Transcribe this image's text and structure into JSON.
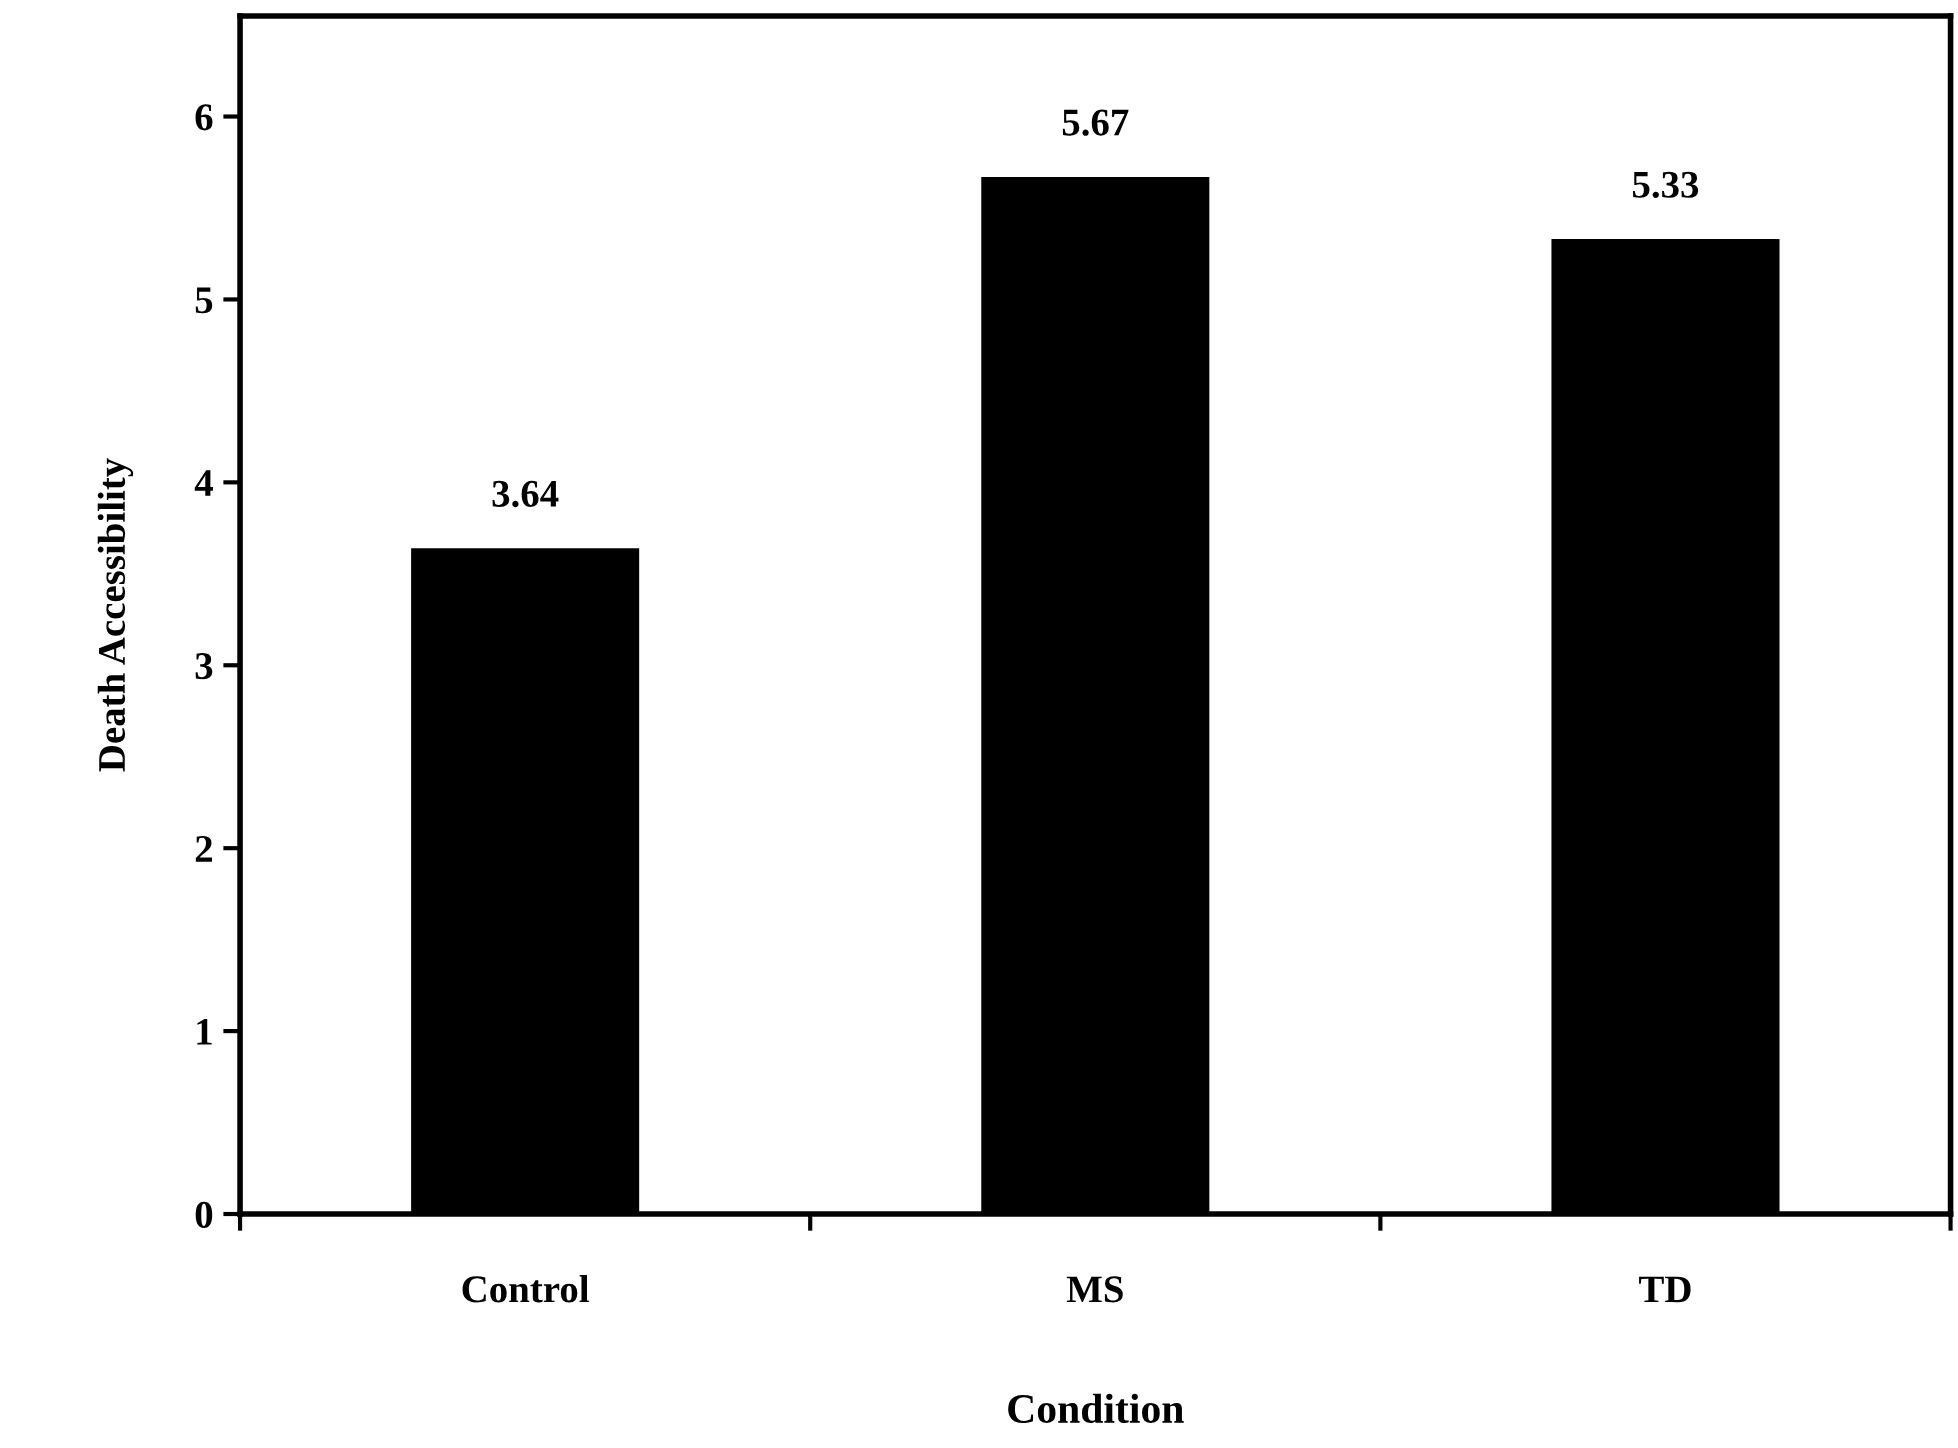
{
  "chart_data": {
    "type": "bar",
    "xlabel": "Condition",
    "ylabel": "Death Accessibility",
    "categories": [
      "Control",
      "MS",
      "TD"
    ],
    "values": [
      3.64,
      5.67,
      5.33
    ],
    "color": "#000000",
    "ylim": [
      0,
      6.55
    ],
    "yticks": [
      0,
      1,
      2,
      3,
      4,
      5,
      6
    ],
    "grid": false,
    "legend": false,
    "data_labels": true
  }
}
